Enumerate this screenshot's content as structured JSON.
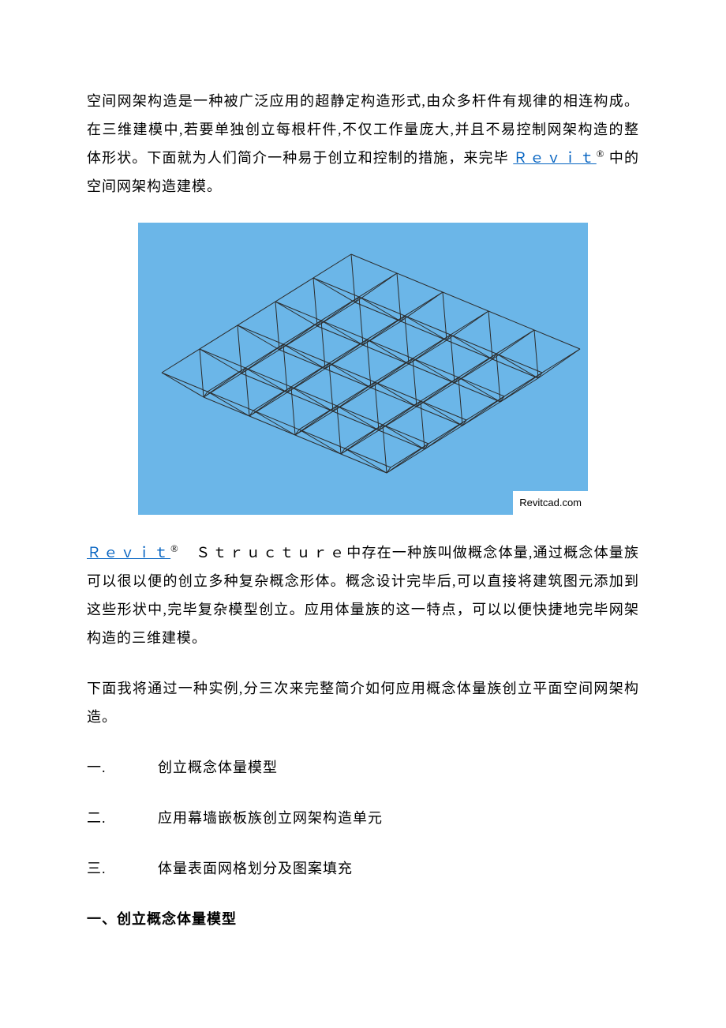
{
  "para1_a": "空间网架构造是一种被广泛应用的超静定构造形式,由众多杆件有规律的相连构成。在三维建模中,若要单独创立每根杆件,不仅工作量庞大,并且不易控制网架构造的整体形状。下面就为人们简介一种易于创立和控制的措施，来完毕 ",
  "para1_link": "Ｒｅｖｉｔ",
  "para1_sup": "®",
  "para1_b": " 中的空间网架构造建模。",
  "figure": {
    "bg_color": "#6bb6e8",
    "line_color": "#2b2b2b",
    "line_width": 1,
    "caption": "Revitcad.com",
    "grid": {
      "rows": 5,
      "cols": 5
    }
  },
  "para2_link": "Ｒｅｖｉｔ",
  "para2_sup": "®",
  "para2_a": "　Ｓｔｒｕｃｔｕｒｅ",
  "para2_b": "中存在一种族叫做概念体量,通过概念体量族可以很以便的创立多种复杂概念形体。概念设计完毕后,可以直接将建筑图元添加到这些形状中,完毕复杂模型创立。应用体量族的这一特点，可以以便快捷地完毕网架构造的三维建模。",
  "para3": "下面我将通过一种实例,分三次来完整简介如何应用概念体量族创立平面空间网架构造。",
  "items": [
    {
      "num": "一.",
      "text": "创立概念体量模型"
    },
    {
      "num": "二.",
      "text": "应用幕墙嵌板族创立网架构造单元"
    },
    {
      "num": "三.",
      "text": "体量表面网格划分及图案填充"
    }
  ],
  "heading": "一、创立概念体量模型"
}
